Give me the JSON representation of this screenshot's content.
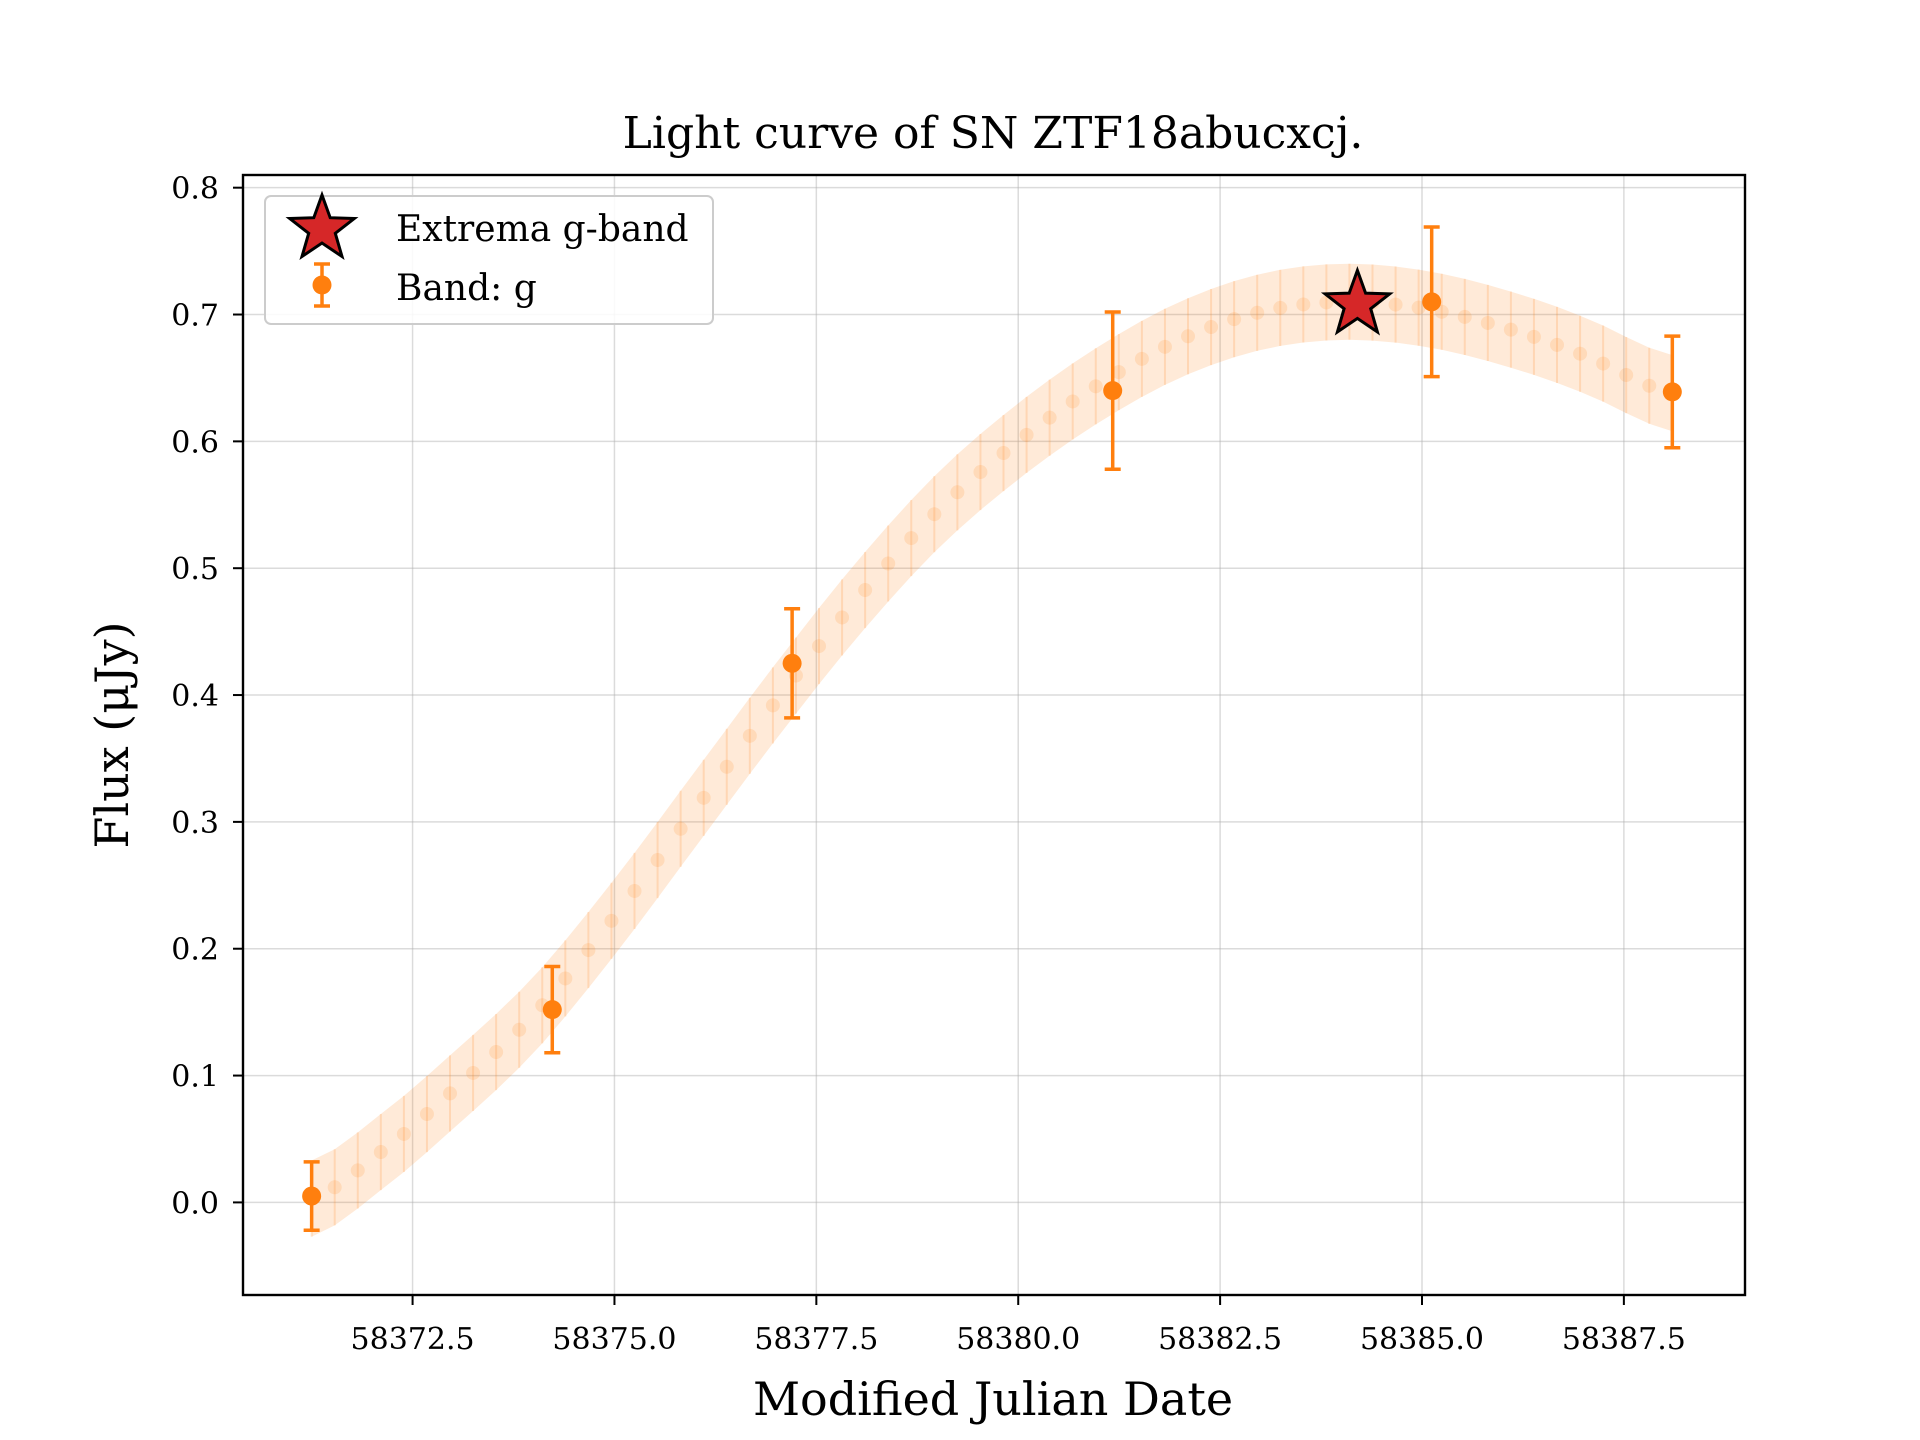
{
  "chart_data": {
    "type": "scatter",
    "title": "Light curve of SN ZTF18abucxcj.",
    "xlabel": "Modified Julian Date",
    "ylabel": "Flux (μJy)",
    "xlim": [
      58370.4,
      58389.0
    ],
    "ylim": [
      -0.073,
      0.81
    ],
    "xticks": [
      58372.5,
      58375.0,
      58377.5,
      58380.0,
      58382.5,
      58385.0,
      58387.5
    ],
    "xtick_labels": [
      "58372.5",
      "58375.0",
      "58377.5",
      "58380.0",
      "58382.5",
      "58385.0",
      "58387.5"
    ],
    "yticks": [
      0.0,
      0.1,
      0.2,
      0.3,
      0.4,
      0.5,
      0.6,
      0.7,
      0.8
    ],
    "ytick_labels": [
      "0.0",
      "0.1",
      "0.2",
      "0.3",
      "0.4",
      "0.5",
      "0.6",
      "0.7",
      "0.8"
    ],
    "grid": true,
    "legend": {
      "position": "upper-left",
      "entries": [
        "Extrema g-band",
        "Band: g"
      ]
    },
    "series": [
      {
        "name": "Band: g",
        "kind": "errorbar",
        "color": "#ff7f0e",
        "x": [
          58371.25,
          58374.23,
          58377.2,
          58381.17,
          58385.12,
          58388.1
        ],
        "y": [
          0.005,
          0.152,
          0.425,
          0.64,
          0.71,
          0.639
        ],
        "yerr": [
          0.027,
          0.034,
          0.043,
          0.062,
          0.059,
          0.044
        ]
      },
      {
        "name": "Extrema g-band",
        "kind": "marker",
        "marker": "star",
        "color": "#d62728",
        "x": [
          58384.2
        ],
        "y": [
          0.708
        ]
      }
    ],
    "model_band": {
      "color": "#ff7f0e",
      "x": [
        58371.25,
        58372.0,
        58373.0,
        58374.0,
        58375.0,
        58376.0,
        58377.0,
        58378.0,
        58379.0,
        58380.0,
        58381.0,
        58382.0,
        58383.0,
        58384.0,
        58385.0,
        58386.0,
        58387.0,
        58388.1
      ],
      "y": [
        0.003,
        0.035,
        0.088,
        0.148,
        0.225,
        0.31,
        0.395,
        0.475,
        0.545,
        0.6,
        0.645,
        0.68,
        0.702,
        0.71,
        0.705,
        0.69,
        0.668,
        0.638
      ],
      "yerr": [
        0.03,
        0.03,
        0.03,
        0.03,
        0.03,
        0.03,
        0.03,
        0.03,
        0.03,
        0.03,
        0.03,
        0.03,
        0.03,
        0.03,
        0.03,
        0.03,
        0.03,
        0.03
      ]
    }
  }
}
